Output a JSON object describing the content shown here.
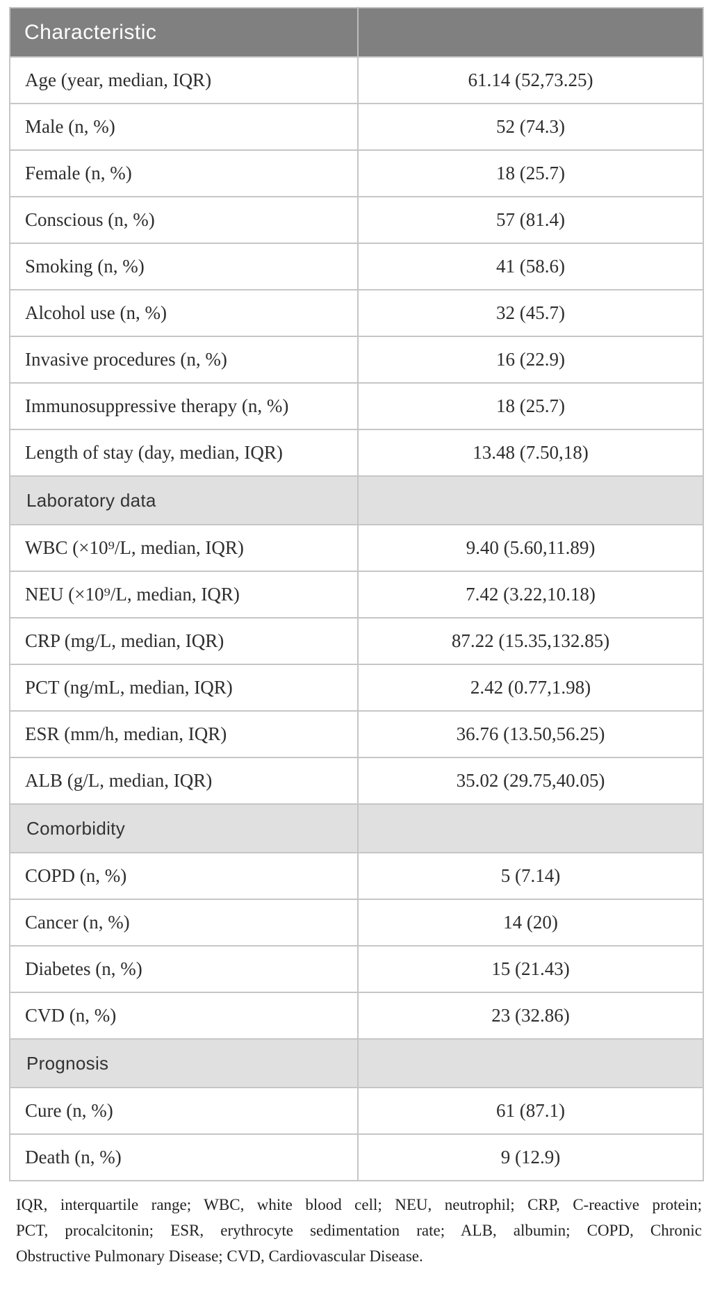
{
  "table": {
    "header": {
      "characteristic": "Characteristic",
      "value": ""
    },
    "sections": [
      {
        "title": "",
        "rows": [
          {
            "label": "Age (year, median, IQR)",
            "value": "61.14 (52,73.25)"
          },
          {
            "label": "Male (n, %)",
            "value": "52 (74.3)"
          },
          {
            "label": "Female (n, %)",
            "value": "18 (25.7)"
          },
          {
            "label": "Conscious (n, %)",
            "value": "57 (81.4)"
          },
          {
            "label": "Smoking (n, %)",
            "value": "41 (58.6)"
          },
          {
            "label": "Alcohol use (n, %)",
            "value": "32 (45.7)"
          },
          {
            "label": "Invasive procedures (n, %)",
            "value": "16 (22.9)"
          },
          {
            "label": "Immunosuppressive therapy (n, %)",
            "value": "18 (25.7)"
          },
          {
            "label": "Length of stay (day, median, IQR)",
            "value": "13.48 (7.50,18)"
          }
        ]
      },
      {
        "title": "Laboratory data",
        "rows": [
          {
            "label": "WBC (×10⁹/L, median, IQR)",
            "value": "9.40 (5.60,11.89)"
          },
          {
            "label": "NEU (×10⁹/L, median, IQR)",
            "value": "7.42 (3.22,10.18)"
          },
          {
            "label": "CRP (mg/L, median, IQR)",
            "value": "87.22 (15.35,132.85)"
          },
          {
            "label": "PCT (ng/mL, median, IQR)",
            "value": "2.42 (0.77,1.98)"
          },
          {
            "label": "ESR (mm/h, median, IQR)",
            "value": "36.76 (13.50,56.25)"
          },
          {
            "label": "ALB (g/L, median, IQR)",
            "value": "35.02 (29.75,40.05)"
          }
        ]
      },
      {
        "title": "Comorbidity",
        "rows": [
          {
            "label": "COPD (n, %)",
            "value": "5 (7.14)"
          },
          {
            "label": "Cancer (n, %)",
            "value": "14 (20)"
          },
          {
            "label": "Diabetes (n, %)",
            "value": "15 (21.43)"
          },
          {
            "label": "CVD (n, %)",
            "value": "23 (32.86)"
          }
        ]
      },
      {
        "title": "Prognosis",
        "rows": [
          {
            "label": "Cure (n, %)",
            "value": "61 (87.1)"
          },
          {
            "label": "Death (n, %)",
            "value": "9 (12.9)"
          }
        ]
      }
    ]
  },
  "footnote": {
    "lines": [
      "IQR, interquartile range; WBC, white blood cell; NEU, neutrophil; CRP, C-reactive protein;",
      "PCT, procalcitonin; ESR, erythrocyte sedimentation rate; ALB, albumin; COPD, Chronic",
      "Obstructive Pulmonary Disease; CVD, Cardiovascular Disease."
    ]
  },
  "colors": {
    "header_bg": "#808080",
    "header_text": "#ffffff",
    "section_bg": "#e0e0e0",
    "row_bg": "#ffffff",
    "border": "#c6c6c6",
    "text": "#2d2d2d"
  }
}
